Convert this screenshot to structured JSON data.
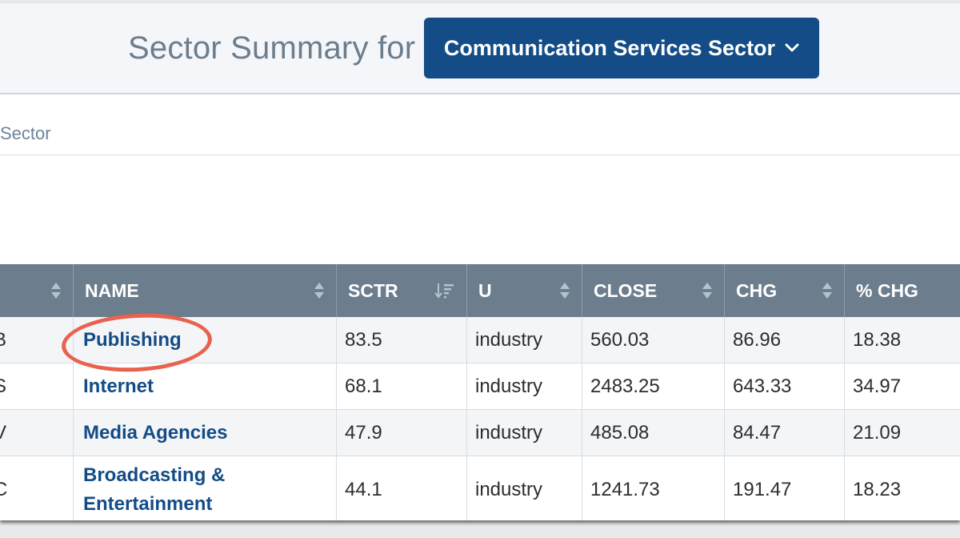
{
  "header": {
    "title": "Sector Summary for",
    "sector_button": "Communication Services Sector"
  },
  "subbar": {
    "label": "Sector"
  },
  "table": {
    "columns": [
      {
        "key": "symbol",
        "label": ""
      },
      {
        "key": "name",
        "label": "NAME"
      },
      {
        "key": "sctr",
        "label": "SCTR"
      },
      {
        "key": "u",
        "label": "U"
      },
      {
        "key": "close",
        "label": "CLOSE"
      },
      {
        "key": "chg",
        "label": "CHG"
      },
      {
        "key": "pchg",
        "label": "% CHG"
      }
    ],
    "rows": [
      {
        "symbol": "B",
        "name": "Publishing",
        "sctr": "83.5",
        "u": "industry",
        "close": "560.03",
        "chg": "86.96",
        "pchg": "18.38"
      },
      {
        "symbol": "S",
        "name": "Internet",
        "sctr": "68.1",
        "u": "industry",
        "close": "2483.25",
        "chg": "643.33",
        "pchg": "34.97"
      },
      {
        "symbol": "V",
        "name": "Media Agencies",
        "sctr": "47.9",
        "u": "industry",
        "close": "485.08",
        "chg": "84.47",
        "pchg": "21.09"
      },
      {
        "symbol": "C",
        "name_line1": "Broadcasting &",
        "name_line2": "Entertainment",
        "sctr": "44.1",
        "u": "industry",
        "close": "1241.73",
        "chg": "191.47",
        "pchg": "18.23"
      }
    ]
  },
  "colors": {
    "accent": "#134c86",
    "header_bg": "#6c7d8d",
    "highlight": "#e8624f"
  }
}
